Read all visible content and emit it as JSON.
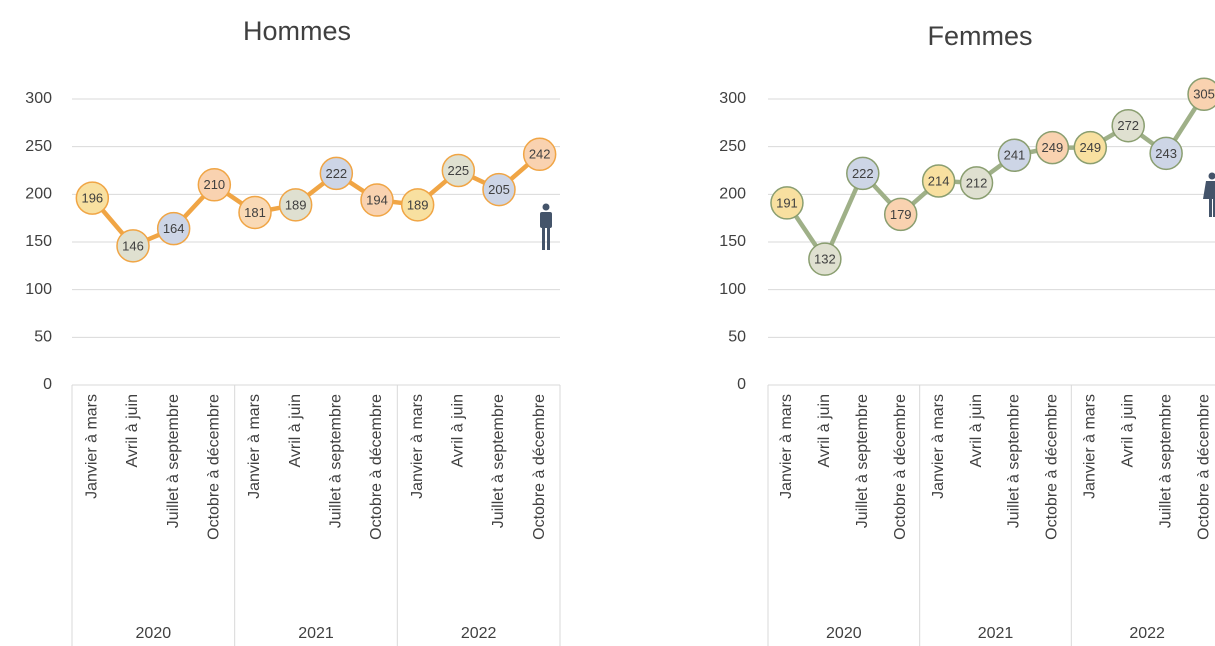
{
  "chart_data": [
    {
      "type": "line",
      "title": "Hommes",
      "categories": [
        "Janvier à mars",
        "Avril à juin",
        "Juillet à septembre",
        "Octobre à décembre",
        "Janvier à mars",
        "Avril à juin",
        "Juillet à septembre",
        "Octobre à décembre",
        "Janvier à mars",
        "Avril à juin",
        "Juillet à septembre",
        "Octobre à décembre"
      ],
      "years": [
        "2020",
        "2021",
        "2022"
      ],
      "values": [
        196,
        146,
        164,
        210,
        181,
        189,
        222,
        194,
        189,
        225,
        205,
        242
      ],
      "color": "#f0a545",
      "marker_colors": [
        "#f8e0a0",
        "#dfe0d0",
        "#cdd5e6",
        "#f9d2b0",
        "#f9d9b5",
        "#dfe0d0",
        "#cdd5e6",
        "#f9d2b0",
        "#f8e0a0",
        "#dfe0d0",
        "#cdd5e6",
        "#f9d2b0"
      ],
      "ylim": [
        0,
        300
      ],
      "yticks": [
        0,
        50,
        100,
        150,
        200,
        250,
        300
      ],
      "grid": true
    },
    {
      "type": "line",
      "title": "Femmes",
      "categories": [
        "Janvier à mars",
        "Avril à juin",
        "Juillet à septembre",
        "Octobre à décembre",
        "Janvier à mars",
        "Avril à juin",
        "Juillet à septembre",
        "Octobre à décembre",
        "Janvier à mars",
        "Avril à juin",
        "Juillet à septembre",
        "Octobre à décembre"
      ],
      "years": [
        "2020",
        "2021",
        "2022"
      ],
      "values": [
        191,
        132,
        222,
        179,
        214,
        212,
        241,
        249,
        249,
        272,
        243,
        305
      ],
      "color": "#9fb088",
      "marker_colors": [
        "#f8e0a0",
        "#dfe0d0",
        "#cdd5e6",
        "#f9d2b0",
        "#f8e0a0",
        "#dfe0d0",
        "#cdd5e6",
        "#f9d2b0",
        "#f8e0a0",
        "#dfe0d0",
        "#cdd5e6",
        "#f9d2b0"
      ],
      "ylim": [
        0,
        300
      ],
      "yticks": [
        0,
        50,
        100,
        150,
        200,
        250,
        300
      ],
      "grid": true
    }
  ]
}
